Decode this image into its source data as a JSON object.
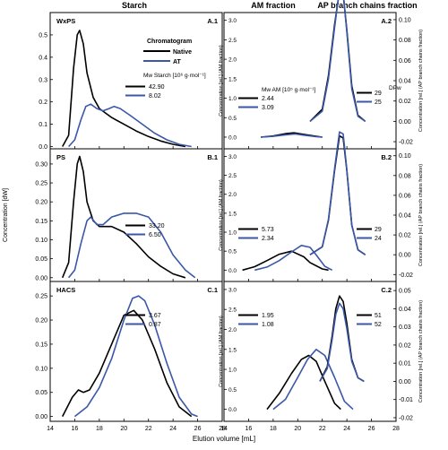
{
  "figure": {
    "header_left": "Starch",
    "header_mid": "AM fraction",
    "header_right": "AP branch chains fraction",
    "xlabel": "Elution volume [mL]",
    "ylabel_left": "Concentration [dW]",
    "ylabel_mid": "Concentration [rel.] (AM fraction)",
    "ylabel_right": "Concentration [rel.] (AP branch chains fraction)",
    "legend_title": "Chromatogram",
    "legend_native": "Native",
    "legend_at": "AT",
    "mw_starch_label": "Mw Starch [10⁶ g·mol⁻¹]",
    "mw_am_label": "Mw AM [10⁵ g·mol⁻¹]",
    "dpw_label": "DPw",
    "colors": {
      "native": "#000000",
      "at": "#3a57a8"
    }
  },
  "chart_data": [
    {
      "id": "A.1",
      "panel_label": "A.1",
      "sample": "WxPS",
      "type": "line",
      "xlim": [
        14,
        28
      ],
      "ylim": [
        -0.01,
        0.6
      ],
      "yticks": [
        "0.0",
        "0.1",
        "0.2",
        "0.3",
        "0.4",
        "0.5"
      ],
      "yticks_values": [
        0.0,
        0.1,
        0.2,
        0.3,
        0.4,
        0.5
      ],
      "annotations": [
        "42.90",
        "8.02"
      ],
      "series": [
        {
          "name": "Native",
          "x": [
            15.0,
            15.5,
            15.9,
            16.2,
            16.4,
            16.7,
            17.0,
            17.5,
            18.0,
            19.0,
            20.0,
            21.0,
            22.0,
            23.0,
            24.0,
            25.0
          ],
          "y": [
            0.0,
            0.05,
            0.35,
            0.5,
            0.52,
            0.46,
            0.33,
            0.22,
            0.17,
            0.13,
            0.1,
            0.07,
            0.045,
            0.025,
            0.01,
            0.0
          ]
        },
        {
          "name": "AT",
          "x": [
            15.5,
            16.0,
            16.5,
            16.9,
            17.3,
            17.8,
            18.3,
            18.8,
            19.2,
            19.7,
            20.5,
            21.5,
            22.5,
            23.5,
            24.5,
            25.5
          ],
          "y": [
            0.0,
            0.03,
            0.12,
            0.18,
            0.19,
            0.17,
            0.16,
            0.17,
            0.18,
            0.17,
            0.14,
            0.1,
            0.06,
            0.03,
            0.01,
            0.0
          ]
        }
      ]
    },
    {
      "id": "A.2",
      "panel_label": "A.2",
      "type": "line",
      "xlim": [
        14,
        28
      ],
      "ylim": [
        -0.3,
        3.2
      ],
      "yticks": [
        "0.0",
        "0.5",
        "1.0",
        "1.5",
        "2.0",
        "2.5",
        "3.0"
      ],
      "yticks_values": [
        0.0,
        0.5,
        1.0,
        1.5,
        2.0,
        2.5,
        3.0
      ],
      "yticks_right": [
        "-0.02",
        "0.00",
        "0.02",
        "0.04",
        "0.06",
        "0.08",
        "0.10"
      ],
      "yticks_right_values": [
        -0.02,
        0.0,
        0.02,
        0.04,
        0.06,
        0.08,
        0.1
      ],
      "y_right_lim": [
        -0.027,
        0.107
      ],
      "annotations": [
        "2.44",
        "3.09"
      ],
      "annotations_right": [
        "29",
        "25"
      ],
      "series": [
        {
          "name": "Native AM",
          "x": [
            17.0,
            18.0,
            19.0,
            19.7,
            20.5,
            21.5,
            22.0
          ],
          "y": [
            0.0,
            0.03,
            0.09,
            0.11,
            0.07,
            0.02,
            0.0
          ]
        },
        {
          "name": "AT AM",
          "x": [
            17.0,
            18.0,
            19.0,
            19.8,
            20.5,
            21.5,
            22.0
          ],
          "y": [
            0.0,
            0.02,
            0.06,
            0.08,
            0.05,
            0.01,
            0.0
          ]
        },
        {
          "name": "Native AP",
          "x": [
            21.0,
            22.0,
            22.5,
            23.0,
            23.4,
            23.7,
            24.0,
            24.4,
            24.9,
            25.5
          ],
          "y": [
            0.0,
            0.012,
            0.045,
            0.095,
            0.128,
            0.125,
            0.09,
            0.035,
            0.006,
            0.0
          ]
        },
        {
          "name": "AT AP",
          "x": [
            21.0,
            22.0,
            22.5,
            23.0,
            23.4,
            23.7,
            24.0,
            24.4,
            24.9,
            25.5
          ],
          "y": [
            0.0,
            0.01,
            0.042,
            0.092,
            0.13,
            0.127,
            0.088,
            0.032,
            0.005,
            0.0
          ]
        }
      ]
    },
    {
      "id": "B.1",
      "panel_label": "B.1",
      "sample": "PS",
      "type": "line",
      "xlim": [
        14,
        28
      ],
      "ylim": [
        -0.01,
        0.34
      ],
      "yticks": [
        "0.00",
        "0.05",
        "0.10",
        "0.15",
        "0.20",
        "0.25",
        "0.30"
      ],
      "yticks_values": [
        0.0,
        0.05,
        0.1,
        0.15,
        0.2,
        0.25,
        0.3
      ],
      "annotations": [
        "33.20",
        "6.50"
      ],
      "series": [
        {
          "name": "Native",
          "x": [
            15.0,
            15.5,
            15.9,
            16.2,
            16.4,
            16.7,
            17.0,
            17.5,
            18.0,
            19.0,
            20.0,
            21.0,
            22.0,
            23.0,
            24.0,
            25.0
          ],
          "y": [
            0.0,
            0.04,
            0.2,
            0.3,
            0.32,
            0.28,
            0.2,
            0.15,
            0.135,
            0.135,
            0.12,
            0.09,
            0.055,
            0.03,
            0.01,
            0.0
          ]
        },
        {
          "name": "AT",
          "x": [
            15.5,
            16.0,
            16.5,
            17.0,
            17.3,
            17.8,
            18.3,
            19.0,
            20.0,
            21.0,
            22.0,
            23.0,
            24.0,
            25.0,
            25.8
          ],
          "y": [
            0.0,
            0.02,
            0.09,
            0.15,
            0.16,
            0.14,
            0.14,
            0.16,
            0.17,
            0.17,
            0.16,
            0.12,
            0.06,
            0.02,
            0.0
          ]
        }
      ]
    },
    {
      "id": "B.2",
      "panel_label": "B.2",
      "type": "line",
      "xlim": [
        14,
        28
      ],
      "ylim": [
        -0.3,
        3.2
      ],
      "yticks": [
        "0.0",
        "0.5",
        "1.0",
        "1.5",
        "2.0",
        "2.5",
        "3.0"
      ],
      "yticks_values": [
        0.0,
        0.5,
        1.0,
        1.5,
        2.0,
        2.5,
        3.0
      ],
      "yticks_right": [
        "-0.02",
        "0.00",
        "0.02",
        "0.04",
        "0.06",
        "0.08",
        "0.10"
      ],
      "yticks_right_values": [
        -0.02,
        0.0,
        0.02,
        0.04,
        0.06,
        0.08,
        0.1
      ],
      "y_right_lim": [
        -0.027,
        0.107
      ],
      "annotations": [
        "5.73",
        "2.34"
      ],
      "annotations_right": [
        "29",
        "24"
      ],
      "series": [
        {
          "name": "Native AM",
          "x": [
            15.5,
            16.5,
            17.5,
            18.5,
            19.5,
            20.5,
            21.0,
            22.0,
            22.5
          ],
          "y": [
            0.0,
            0.09,
            0.25,
            0.42,
            0.5,
            0.35,
            0.2,
            0.03,
            0.0
          ]
        },
        {
          "name": "AT AM",
          "x": [
            16.5,
            17.5,
            18.5,
            19.5,
            20.3,
            21.0,
            21.5,
            22.2,
            22.8
          ],
          "y": [
            0.0,
            0.08,
            0.25,
            0.48,
            0.65,
            0.6,
            0.4,
            0.1,
            0.0
          ]
        },
        {
          "name": "Native AP",
          "x": [
            21.0,
            22.0,
            22.5,
            23.0,
            23.4,
            23.7,
            24.0,
            24.4,
            24.9,
            25.5
          ],
          "y": [
            0.0,
            0.008,
            0.035,
            0.085,
            0.12,
            0.118,
            0.085,
            0.03,
            0.005,
            0.0
          ]
        },
        {
          "name": "AT AP",
          "x": [
            21.0,
            22.0,
            22.5,
            23.0,
            23.4,
            23.7,
            24.0,
            24.4,
            24.9,
            25.5
          ],
          "y": [
            0.0,
            0.008,
            0.036,
            0.087,
            0.124,
            0.122,
            0.086,
            0.03,
            0.005,
            0.0
          ]
        }
      ]
    },
    {
      "id": "C.1",
      "panel_label": "C.1",
      "sample": "HACS",
      "type": "line",
      "xlim": [
        14,
        28
      ],
      "ylim": [
        -0.01,
        0.28
      ],
      "yticks": [
        "0.00",
        "0.05",
        "0.10",
        "0.15",
        "0.20",
        "0.25"
      ],
      "yticks_values": [
        0.0,
        0.05,
        0.1,
        0.15,
        0.2,
        0.25
      ],
      "annotations": [
        "3.67",
        "0.87"
      ],
      "series": [
        {
          "name": "Native",
          "x": [
            15.0,
            15.8,
            16.3,
            16.7,
            17.2,
            18.0,
            19.0,
            20.0,
            20.8,
            21.5,
            22.5,
            23.5,
            24.5,
            25.5
          ],
          "y": [
            0.0,
            0.04,
            0.055,
            0.05,
            0.055,
            0.09,
            0.15,
            0.21,
            0.22,
            0.2,
            0.14,
            0.07,
            0.02,
            0.0
          ]
        },
        {
          "name": "AT",
          "x": [
            16.0,
            17.0,
            18.0,
            19.0,
            20.0,
            20.7,
            21.2,
            21.7,
            22.5,
            23.5,
            24.5,
            25.5,
            26.0
          ],
          "y": [
            0.0,
            0.02,
            0.06,
            0.12,
            0.2,
            0.245,
            0.25,
            0.24,
            0.19,
            0.11,
            0.04,
            0.005,
            0.0
          ]
        }
      ]
    },
    {
      "id": "C.2",
      "panel_label": "C.2",
      "type": "line",
      "xlim": [
        14,
        28
      ],
      "ylim": [
        -0.3,
        3.2
      ],
      "yticks": [
        "0.0",
        "0.5",
        "1.0",
        "1.5",
        "2.0",
        "2.5",
        "3.0"
      ],
      "yticks_values": [
        0.0,
        0.5,
        1.0,
        1.5,
        2.0,
        2.5,
        3.0
      ],
      "yticks_right": [
        "-0.02",
        "-0.01",
        "0.00",
        "0.01",
        "0.02",
        "0.03",
        "0.04",
        "0.05"
      ],
      "yticks_right_values": [
        -0.02,
        -0.01,
        0.0,
        0.01,
        0.02,
        0.03,
        0.04,
        0.05
      ],
      "y_right_lim": [
        -0.022,
        0.055
      ],
      "annotations": [
        "1.95",
        "1.08"
      ],
      "annotations_right": [
        "51",
        "52"
      ],
      "series": [
        {
          "name": "Native AM",
          "x": [
            17.5,
            18.5,
            19.5,
            20.3,
            20.9,
            21.5,
            22.2,
            23.0,
            23.5
          ],
          "y": [
            0.0,
            0.4,
            0.9,
            1.25,
            1.35,
            1.2,
            0.7,
            0.15,
            0.0
          ]
        },
        {
          "name": "AT AM",
          "x": [
            18.0,
            19.0,
            20.0,
            20.8,
            21.5,
            22.2,
            23.0,
            23.8,
            24.5
          ],
          "y": [
            0.0,
            0.25,
            0.8,
            1.25,
            1.5,
            1.35,
            0.8,
            0.2,
            0.0
          ]
        },
        {
          "name": "Native AP",
          "x": [
            21.8,
            22.4,
            22.8,
            23.1,
            23.4,
            23.7,
            24.0,
            24.4,
            24.9,
            25.4
          ],
          "y": [
            0.0,
            0.008,
            0.025,
            0.04,
            0.047,
            0.044,
            0.032,
            0.012,
            0.002,
            0.0
          ]
        },
        {
          "name": "AT AP",
          "x": [
            21.8,
            22.4,
            22.8,
            23.1,
            23.4,
            23.7,
            24.0,
            24.4,
            24.9,
            25.4
          ],
          "y": [
            0.0,
            0.007,
            0.023,
            0.037,
            0.043,
            0.04,
            0.029,
            0.011,
            0.002,
            0.0
          ]
        }
      ]
    }
  ],
  "xaxis": {
    "ticks": [
      "14",
      "16",
      "18",
      "20",
      "22",
      "24",
      "26",
      "28"
    ],
    "tick_values": [
      14,
      16,
      18,
      20,
      22,
      24,
      26,
      28
    ]
  }
}
